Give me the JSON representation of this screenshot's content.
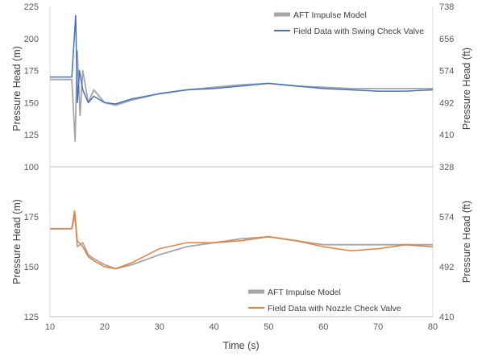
{
  "chart_data": [
    {
      "type": "line",
      "xlabel": "Time (s)",
      "ylabel": "Pressure Head (m)",
      "y2label": "Pressure Head (ft)",
      "xlim": [
        10,
        80
      ],
      "ylim": [
        100,
        225
      ],
      "x_ticks": [
        "10",
        "20",
        "30",
        "40",
        "50",
        "60",
        "70",
        "80"
      ],
      "y_ticks": [
        "100",
        "125",
        "150",
        "175",
        "200",
        "225"
      ],
      "y2_ticks": [
        "328",
        "410",
        "492",
        "574",
        "656",
        "738"
      ],
      "grid": false,
      "legend": "top-right",
      "series": [
        {
          "name": "AFT Impulse Model",
          "color": "#a6a6a6",
          "x": [
            10,
            14,
            14.6,
            15,
            15.5,
            16,
            17,
            18,
            20,
            22,
            25,
            30,
            35,
            40,
            45,
            50,
            55,
            60,
            65,
            70,
            75,
            80
          ],
          "y": [
            168,
            168,
            120,
            190,
            140,
            175,
            150,
            160,
            150,
            148,
            152,
            157,
            160,
            162,
            164,
            165,
            163,
            162,
            161,
            161,
            161,
            161
          ]
        },
        {
          "name": "Field Data with Swing Check Valve",
          "color": "#4472c4",
          "x": [
            10,
            14,
            14.7,
            15,
            15.4,
            16,
            17,
            18,
            20,
            22,
            25,
            30,
            35,
            40,
            45,
            50,
            55,
            60,
            65,
            70,
            75,
            80
          ],
          "y": [
            170,
            170,
            218,
            150,
            175,
            160,
            150,
            155,
            150,
            149,
            153,
            157,
            160,
            161,
            163,
            165,
            163,
            161,
            160,
            159,
            159,
            160
          ]
        }
      ]
    },
    {
      "type": "line",
      "xlabel": "Time (s)",
      "ylabel": "Pressure Head (m)",
      "y2label": "Pressure Head (ft)",
      "xlim": [
        10,
        80
      ],
      "ylim": [
        125,
        200
      ],
      "x_ticks": [
        "10",
        "20",
        "30",
        "40",
        "50",
        "60",
        "70",
        "80"
      ],
      "y_ticks": [
        "125",
        "150",
        "175"
      ],
      "y2_ticks": [
        "410",
        "492",
        "574"
      ],
      "grid": false,
      "legend": "bottom-right",
      "series": [
        {
          "name": "AFT Impulse Model",
          "color": "#a6a6a6",
          "x": [
            10,
            14,
            14.6,
            15,
            16,
            17,
            18,
            20,
            22,
            25,
            30,
            35,
            40,
            45,
            50,
            55,
            60,
            65,
            70,
            75,
            80
          ],
          "y": [
            169,
            169,
            176,
            160,
            162,
            156,
            154,
            151,
            149,
            151,
            156,
            160,
            162,
            164,
            165,
            163,
            161,
            161,
            161,
            161,
            161
          ]
        },
        {
          "name": "Field Data with Nozzle Check Valve",
          "color": "#ed7d31",
          "x": [
            10,
            14,
            14.5,
            15,
            16,
            17,
            18,
            20,
            22,
            25,
            30,
            35,
            40,
            45,
            50,
            55,
            60,
            65,
            70,
            75,
            80
          ],
          "y": [
            169,
            169,
            178,
            163,
            160,
            155,
            153,
            150,
            149,
            152,
            159,
            162,
            162,
            163,
            165,
            163,
            160,
            158,
            159,
            161,
            160
          ]
        }
      ]
    }
  ]
}
